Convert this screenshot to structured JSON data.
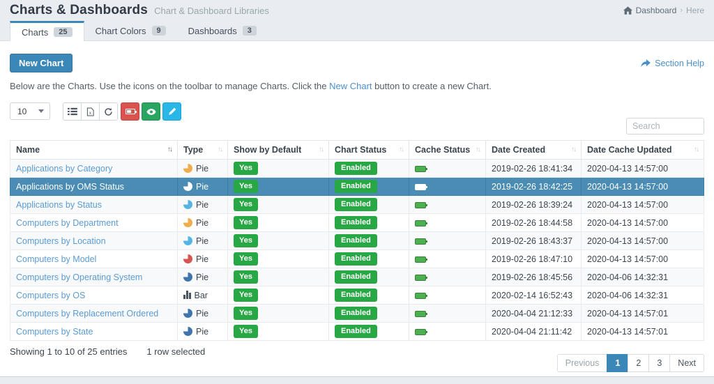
{
  "page": {
    "title": "Charts & Dashboards",
    "subtitle": "Chart & Dashboard Libraries",
    "breadcrumb": {
      "dashboard": "Dashboard",
      "separator": "›",
      "current": "Here"
    }
  },
  "tabs": [
    {
      "label": "Charts",
      "count": "25",
      "active": true
    },
    {
      "label": "Chart Colors",
      "count": "9",
      "active": false
    },
    {
      "label": "Dashboards",
      "count": "3",
      "active": false
    }
  ],
  "actions": {
    "new_chart_label": "New Chart",
    "section_help_label": "Section Help"
  },
  "intro": {
    "before": "Below are the Charts. Use the icons on the toolbar to manage Charts. Click the ",
    "link": "New Chart",
    "after": " button to create a new Chart."
  },
  "toolbar": {
    "page_length": "10",
    "search_placeholder": "Search",
    "buttons": [
      {
        "name": "list-view-button",
        "icon": "list-icon",
        "style": "default"
      },
      {
        "name": "export-button",
        "icon": "file-export-icon",
        "style": "default"
      },
      {
        "name": "refresh-button",
        "icon": "refresh-icon",
        "style": "default"
      },
      {
        "name": "cache-button",
        "icon": "battery-icon",
        "style": "danger",
        "color": "#d9534f"
      },
      {
        "name": "visibility-button",
        "icon": "eye-icon",
        "style": "success",
        "color": "#27a561"
      },
      {
        "name": "edit-button",
        "icon": "pencil-icon",
        "style": "info",
        "color": "#29b7e8"
      }
    ]
  },
  "table": {
    "columns": [
      {
        "label": "Name",
        "sort": "active"
      },
      {
        "label": "Type",
        "sort": "inactive"
      },
      {
        "label": "Show by Default",
        "sort": "inactive"
      },
      {
        "label": "Chart Status",
        "sort": "inactive"
      },
      {
        "label": "Cache Status",
        "sort": "inactive"
      },
      {
        "label": "Date Created",
        "sort": "inactive"
      },
      {
        "label": "Date Cache Updated",
        "sort": "inactive"
      }
    ],
    "rows": [
      {
        "name": "Applications by Category",
        "icon": "pie",
        "icon_color": "#f0ad4e",
        "type": "Pie",
        "show_by_default": "Yes",
        "chart_status": "Enabled",
        "cache_status": "battery-full",
        "date_created": "2019-02-26 18:41:34",
        "date_cache_updated": "2020-04-13 14:57:00",
        "selected": false
      },
      {
        "name": "Applications by OMS Status",
        "icon": "pie",
        "icon_color": "#ffffff",
        "type": "Pie",
        "show_by_default": "Yes",
        "chart_status": "Enabled",
        "cache_status": "battery-full",
        "date_created": "2019-02-26 18:42:25",
        "date_cache_updated": "2020-04-13 14:57:00",
        "selected": true
      },
      {
        "name": "Applications by Status",
        "icon": "pie",
        "icon_color": "#56b4e4",
        "type": "Pie",
        "show_by_default": "Yes",
        "chart_status": "Enabled",
        "cache_status": "battery-full",
        "date_created": "2019-02-26 18:39:24",
        "date_cache_updated": "2020-04-13 14:57:00",
        "selected": false
      },
      {
        "name": "Computers by Department",
        "icon": "pie",
        "icon_color": "#f0ad4e",
        "type": "Pie",
        "show_by_default": "Yes",
        "chart_status": "Enabled",
        "cache_status": "battery-full",
        "date_created": "2019-02-26 18:44:58",
        "date_cache_updated": "2020-04-13 14:57:00",
        "selected": false
      },
      {
        "name": "Computers by Location",
        "icon": "pie",
        "icon_color": "#56b4e4",
        "type": "Pie",
        "show_by_default": "Yes",
        "chart_status": "Enabled",
        "cache_status": "battery-full",
        "date_created": "2019-02-26 18:43:37",
        "date_cache_updated": "2020-04-13 14:57:00",
        "selected": false
      },
      {
        "name": "Computers by Model",
        "icon": "pie",
        "icon_color": "#d9534f",
        "type": "Pie",
        "show_by_default": "Yes",
        "chart_status": "Enabled",
        "cache_status": "battery-full",
        "date_created": "2019-02-26 18:47:10",
        "date_cache_updated": "2020-04-13 14:57:00",
        "selected": false
      },
      {
        "name": "Computers by Operating System",
        "icon": "pie",
        "icon_color": "#3f74ad",
        "type": "Pie",
        "show_by_default": "Yes",
        "chart_status": "Enabled",
        "cache_status": "battery-full",
        "date_created": "2019-02-26 18:45:56",
        "date_cache_updated": "2020-04-06 14:32:31",
        "selected": false
      },
      {
        "name": "Computers by OS",
        "icon": "bar",
        "icon_color": "#4a5560",
        "type": "Bar",
        "show_by_default": "Yes",
        "chart_status": "Enabled",
        "cache_status": "battery-full",
        "date_created": "2020-02-14 16:52:43",
        "date_cache_updated": "2020-04-06 14:32:31",
        "selected": false
      },
      {
        "name": "Computers by Replacement Ordered",
        "icon": "pie",
        "icon_color": "#3f74ad",
        "type": "Pie",
        "show_by_default": "Yes",
        "chart_status": "Enabled",
        "cache_status": "battery-full",
        "date_created": "2020-04-04 21:12:33",
        "date_cache_updated": "2020-04-13 14:57:01",
        "selected": false
      },
      {
        "name": "Computers by State",
        "icon": "pie",
        "icon_color": "#3f74ad",
        "type": "Pie",
        "show_by_default": "Yes",
        "chart_status": "Enabled",
        "cache_status": "battery-full",
        "date_created": "2020-04-04 21:11:42",
        "date_cache_updated": "2020-04-13 14:57:01",
        "selected": false
      }
    ]
  },
  "footer": {
    "showing": "Showing 1 to 10 of 25 entries",
    "selection_note": "1 row selected",
    "pagination": {
      "previous": "Previous",
      "pages": [
        "1",
        "2",
        "3"
      ],
      "next": "Next",
      "active_page": "1"
    }
  },
  "colors": {
    "accent_blue": "#3a87b8",
    "selected_row_blue": "#4a8cb3",
    "success_green": "#28a745",
    "danger_red": "#d9534f",
    "info_cyan": "#29b7e8",
    "link_blue": "#5b9bd3"
  }
}
